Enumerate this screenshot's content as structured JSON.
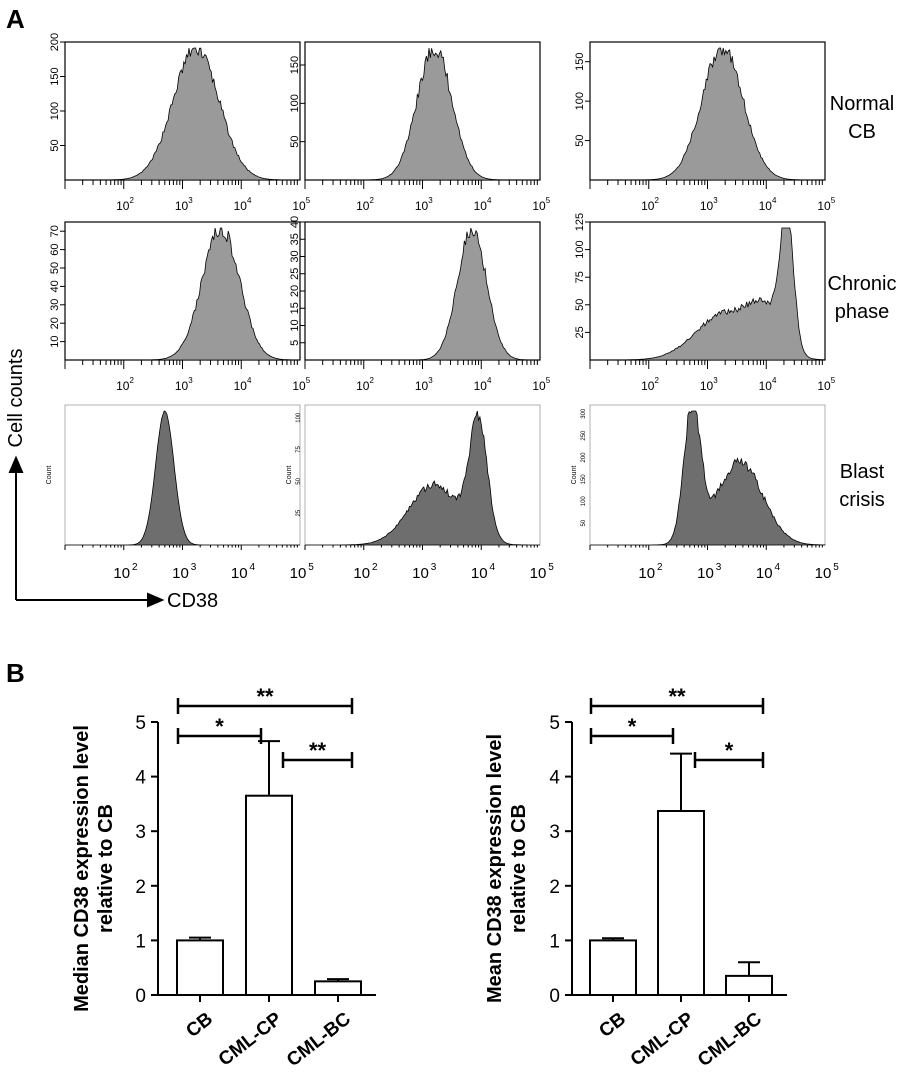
{
  "panel_a": {
    "letter": "A",
    "row_labels": [
      [
        "Normal",
        "CB"
      ],
      [
        "Chronic",
        "phase"
      ],
      [
        "Blast",
        "crisis"
      ]
    ],
    "y_axis_label": "Cell counts",
    "x_axis_label": "CD38",
    "count_word": "Count",
    "tick_labels": [
      "10",
      "10",
      "10",
      "10"
    ],
    "tick_exponents": [
      "2",
      "3",
      "4",
      "5"
    ],
    "colors": {
      "fill_light": "#9a9a9a",
      "fill_dark": "#6e6e6e",
      "stroke": "#000000"
    }
  },
  "panel_b": {
    "letter": "B",
    "colors": {
      "bar_fill": "#ffffff",
      "stroke": "#000000"
    }
  },
  "chart_data": [
    {
      "type": "area",
      "row": "Normal CB",
      "x_scale": "log",
      "xlim": [
        10,
        100000
      ],
      "y_ticks": [
        "50",
        "100",
        "150",
        "200"
      ],
      "peak": 1700,
      "spread": 0.55,
      "y_max": 200
    },
    {
      "type": "area",
      "row": "Normal CB",
      "x_scale": "log",
      "xlim": [
        10,
        100000
      ],
      "y_ticks": [
        "50",
        "100",
        "150"
      ],
      "peak": 1600,
      "spread": 0.42,
      "y_max": 180
    },
    {
      "type": "area",
      "row": "Normal CB",
      "x_scale": "log",
      "xlim": [
        10,
        100000
      ],
      "y_ticks": [
        "50",
        "100",
        "150"
      ],
      "peak": 1800,
      "spread": 0.5,
      "y_max": 175
    },
    {
      "type": "area",
      "row": "Chronic phase",
      "x_scale": "log",
      "xlim": [
        10,
        100000
      ],
      "y_ticks": [
        "10",
        "20",
        "30",
        "40",
        "50",
        "60",
        "70"
      ],
      "peak": 4500,
      "spread": 0.45,
      "y_max": 75
    },
    {
      "type": "area",
      "row": "Chronic phase",
      "x_scale": "log",
      "xlim": [
        10,
        100000
      ],
      "y_ticks": [
        "5",
        "10",
        "15",
        "20",
        "25",
        "30",
        "35",
        "40"
      ],
      "peak": 7000,
      "spread": 0.35,
      "y_max": 40
    },
    {
      "type": "area",
      "row": "Chronic phase",
      "x_scale": "log",
      "xlim": [
        10,
        100000
      ],
      "y_ticks": [
        "25",
        "50",
        "75",
        "100",
        "125"
      ],
      "peak": 22000,
      "spread": 0.7,
      "y_max": 125
    },
    {
      "type": "area",
      "row": "Blast crisis",
      "x_scale": "log",
      "xlim": [
        10,
        100000
      ],
      "y_ticks": [],
      "peak": 500,
      "spread": 0.22,
      "y_max": 600
    },
    {
      "type": "area",
      "row": "Blast crisis",
      "x_scale": "log",
      "xlim": [
        10,
        100000
      ],
      "y_ticks": [
        "25",
        "50",
        "75",
        "100"
      ],
      "peak": 9000,
      "spread": 0.8,
      "y_max": 110
    },
    {
      "type": "area",
      "row": "Blast crisis",
      "x_scale": "log",
      "xlim": [
        10,
        100000
      ],
      "y_ticks": [
        "50",
        "100",
        "150",
        "200",
        "250",
        "300"
      ],
      "peak": 550,
      "spread": 0.75,
      "y_max": 320
    },
    {
      "type": "bar",
      "ylabel": [
        "Median CD38 expression level",
        "relative to CB"
      ],
      "categories": [
        "CB",
        "CML-CP",
        "CML-BC"
      ],
      "values": [
        1.0,
        3.65,
        0.25
      ],
      "errors": [
        0.05,
        1.0,
        0.04
      ],
      "ylim": [
        0,
        5
      ],
      "yticks": [
        "0",
        "1",
        "2",
        "3",
        "4",
        "5"
      ],
      "significance": [
        {
          "from": 0,
          "to": 1,
          "label": "*"
        },
        {
          "from": 1,
          "to": 2,
          "label": "**"
        },
        {
          "from": 0,
          "to": 2,
          "label": "**"
        }
      ]
    },
    {
      "type": "bar",
      "ylabel": [
        "Mean CD38 expression level",
        "relative to CB"
      ],
      "categories": [
        "CB",
        "CML-CP",
        "CML-BC"
      ],
      "values": [
        1.0,
        3.37,
        0.35
      ],
      "errors": [
        0.04,
        1.05,
        0.25
      ],
      "ylim": [
        0,
        5
      ],
      "yticks": [
        "0",
        "1",
        "2",
        "3",
        "4",
        "5"
      ],
      "significance": [
        {
          "from": 0,
          "to": 1,
          "label": "*"
        },
        {
          "from": 1,
          "to": 2,
          "label": "*"
        },
        {
          "from": 0,
          "to": 2,
          "label": "**"
        }
      ]
    }
  ]
}
